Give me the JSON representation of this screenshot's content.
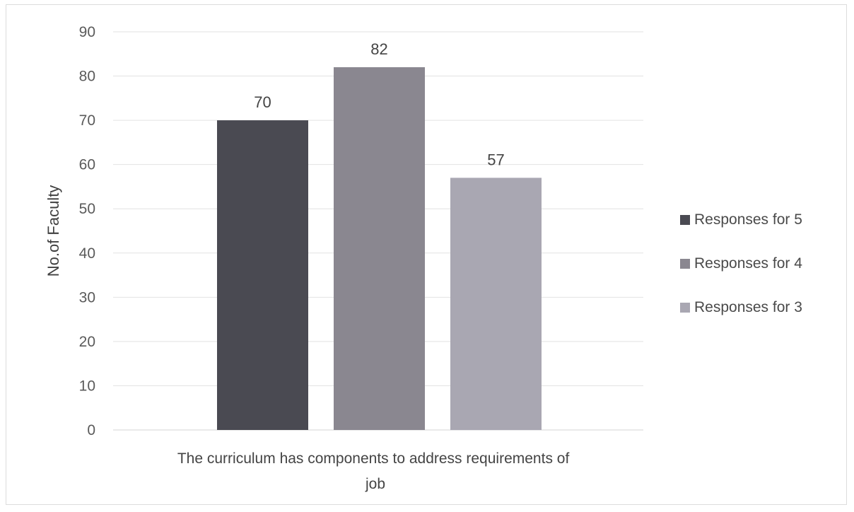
{
  "chart_data": {
    "type": "bar",
    "categories": [
      "The curriculum has components to address requirements of job"
    ],
    "category_label_lines": [
      "The curriculum has components to address requirements of",
      "job"
    ],
    "series": [
      {
        "name": "Responses for 5",
        "values": [
          70
        ],
        "color": "#4a4a52"
      },
      {
        "name": "Responses for 4",
        "values": [
          82
        ],
        "color": "#8a8790"
      },
      {
        "name": "Responses for 3",
        "values": [
          57
        ],
        "color": "#a9a7b2"
      }
    ],
    "title": "",
    "xlabel": "",
    "ylabel": "No.of Faculty",
    "ylim": [
      0,
      90
    ],
    "yticks": [
      0,
      10,
      20,
      30,
      40,
      50,
      60,
      70,
      80,
      90
    ],
    "grid": true,
    "legend_position": "right"
  }
}
